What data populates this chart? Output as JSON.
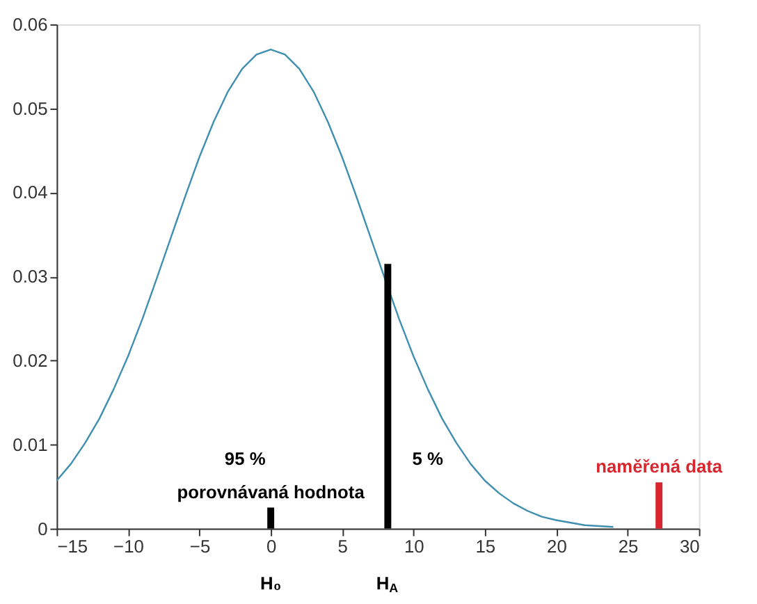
{
  "chart_data": {
    "type": "line",
    "xlim": [
      -15,
      30
    ],
    "xticks": [
      -15,
      -10,
      -5,
      0,
      5,
      10,
      15,
      20,
      25,
      30
    ],
    "ylim": [
      0,
      0.06
    ],
    "yticks": [
      0,
      0.01,
      0.02,
      0.03,
      0.04,
      0.05,
      0.06
    ],
    "grid": false,
    "marker": "none",
    "line_style": "solid",
    "series": [
      {
        "color": "#3f8fb0",
        "x": [
          -15,
          -14,
          -13,
          -12,
          -11,
          -10,
          -9,
          -8,
          -7,
          -6,
          -5,
          -4,
          -3,
          -2,
          -1,
          0,
          1,
          2,
          3,
          4,
          5,
          6,
          7,
          8,
          9,
          10,
          11,
          12,
          13,
          14,
          15,
          16,
          17,
          18,
          19,
          20,
          22,
          24
        ],
        "values": [
          0.0057,
          0.0077,
          0.0102,
          0.0131,
          0.0166,
          0.0205,
          0.0249,
          0.0297,
          0.0346,
          0.0395,
          0.0442,
          0.0484,
          0.052,
          0.0547,
          0.0564,
          0.057,
          0.0564,
          0.0547,
          0.052,
          0.0484,
          0.0442,
          0.0395,
          0.0346,
          0.0297,
          0.0249,
          0.0205,
          0.0166,
          0.0131,
          0.0102,
          0.0077,
          0.0057,
          0.0042,
          0.003,
          0.0021,
          0.0014,
          0.001,
          0.0004,
          0.0002
        ]
      },
      {
        "name": "porovnávaná hodnota",
        "color": "#000000",
        "x": [
          0,
          0
        ],
        "values": [
          0,
          0.0025
        ]
      },
      {
        "color": "#000000",
        "x": [
          8.2,
          8.2
        ],
        "values": [
          0,
          0.0315
        ]
      },
      {
        "name": "naměřená data",
        "color": "#d9262e",
        "x": [
          27.2,
          27.2
        ],
        "values": [
          0,
          0.0055
        ]
      }
    ],
    "annotations": [
      "95 %",
      "5 %",
      "H₀",
      "H$_{A}$"
    ]
  }
}
